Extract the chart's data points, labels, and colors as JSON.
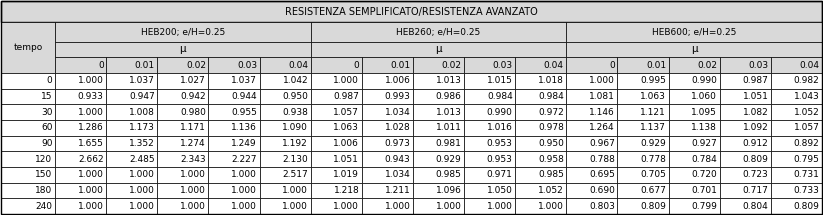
{
  "title": "RESISTENZA SEMPLIFICATO/RESISTENZA AVANZATO",
  "sections": [
    "HEB200; e/H=0.25",
    "HEB260; e/H=0.25",
    "HEB600; e/H=0.25"
  ],
  "mu_label": "μ",
  "rows": [
    [
      0,
      1.0,
      1.037,
      1.027,
      1.037,
      1.042,
      1.0,
      1.006,
      1.013,
      1.015,
      1.018,
      1.0,
      0.995,
      0.99,
      0.987,
      0.982
    ],
    [
      15,
      0.933,
      0.947,
      0.942,
      0.944,
      0.95,
      0.987,
      0.993,
      0.986,
      0.984,
      0.984,
      1.081,
      1.063,
      1.06,
      1.051,
      1.043
    ],
    [
      30,
      1.0,
      1.008,
      0.98,
      0.955,
      0.938,
      1.057,
      1.034,
      1.013,
      0.99,
      0.972,
      1.146,
      1.121,
      1.095,
      1.082,
      1.052
    ],
    [
      60,
      1.286,
      1.173,
      1.171,
      1.136,
      1.09,
      1.063,
      1.028,
      1.011,
      1.016,
      0.978,
      1.264,
      1.137,
      1.138,
      1.092,
      1.057
    ],
    [
      90,
      1.655,
      1.352,
      1.274,
      1.249,
      1.192,
      1.006,
      0.973,
      0.981,
      0.953,
      0.95,
      0.967,
      0.929,
      0.927,
      0.912,
      0.892
    ],
    [
      120,
      2.662,
      2.485,
      2.343,
      2.227,
      2.13,
      1.051,
      0.943,
      0.929,
      0.953,
      0.958,
      0.788,
      0.778,
      0.784,
      0.809,
      0.795
    ],
    [
      150,
      1.0,
      1.0,
      1.0,
      1.0,
      2.517,
      1.019,
      1.034,
      0.985,
      0.971,
      0.985,
      0.695,
      0.705,
      0.72,
      0.723,
      0.731
    ],
    [
      180,
      1.0,
      1.0,
      1.0,
      1.0,
      1.0,
      1.218,
      1.211,
      1.096,
      1.05,
      1.052,
      0.69,
      0.677,
      0.701,
      0.717,
      0.733
    ],
    [
      240,
      1.0,
      1.0,
      1.0,
      1.0,
      1.0,
      1.0,
      1.0,
      1.0,
      1.0,
      1.0,
      0.803,
      0.809,
      0.799,
      0.804,
      0.809
    ]
  ],
  "header_bg": "#d9d9d9",
  "data_bg": "#ffffff",
  "text_color": "#000000",
  "border_color": "#000000",
  "title_fontsize": 7.0,
  "header_fontsize": 6.5,
  "data_fontsize": 6.5,
  "mu_fontsize": 7.5
}
